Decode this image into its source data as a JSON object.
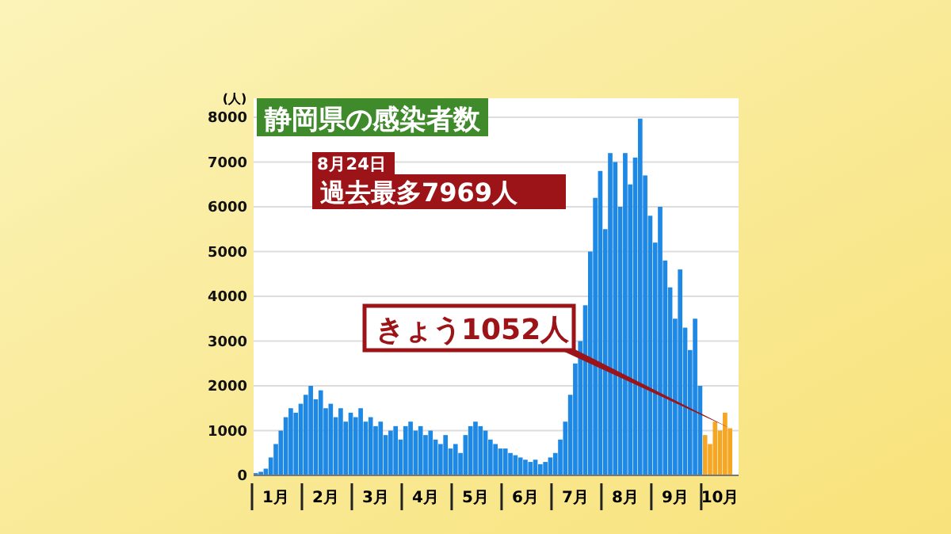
{
  "chart_data": {
    "type": "bar",
    "title": "静岡県の感染者数",
    "ylabel": "(人)",
    "categories": [
      null,
      null,
      null,
      null,
      "1月",
      null,
      null,
      null,
      null,
      null,
      null,
      null,
      null,
      null,
      "2月",
      null,
      null,
      null,
      null,
      null,
      null,
      null,
      null,
      null,
      "3月",
      null,
      null,
      null,
      null,
      null,
      null,
      null,
      null,
      null,
      "4月",
      null,
      null,
      null,
      null,
      null,
      null,
      null,
      null,
      null,
      "5月",
      null,
      null,
      null,
      null,
      null,
      null,
      null,
      null,
      null,
      "6月",
      null,
      null,
      null,
      null,
      null,
      null,
      null,
      null,
      null,
      "7月",
      null,
      null,
      null,
      null,
      null,
      null,
      null,
      null,
      null,
      "8月",
      null,
      null,
      null,
      null,
      null,
      null,
      null,
      null,
      null,
      "9月",
      null,
      null,
      null,
      null,
      null,
      null,
      null,
      null,
      "10月",
      null,
      null
    ],
    "values": [
      50,
      80,
      150,
      400,
      700,
      1000,
      1300,
      1500,
      1400,
      1600,
      1800,
      2000,
      1700,
      1900,
      1500,
      1600,
      1300,
      1500,
      1200,
      1400,
      1300,
      1500,
      1200,
      1300,
      1100,
      1200,
      900,
      1000,
      1100,
      800,
      1100,
      1200,
      1000,
      1100,
      900,
      1000,
      800,
      700,
      900,
      600,
      700,
      500,
      900,
      1100,
      1200,
      1100,
      1000,
      800,
      700,
      600,
      600,
      500,
      450,
      400,
      350,
      300,
      350,
      250,
      300,
      400,
      500,
      800,
      1200,
      1800,
      2500,
      3000,
      3800,
      5000,
      6200,
      6800,
      5500,
      7200,
      7000,
      6000,
      7200,
      6500,
      7100,
      7969,
      6700,
      5800,
      5200,
      6000,
      4800,
      4200,
      3500,
      4600,
      3300,
      2800,
      3500,
      2000,
      900,
      700,
      1200,
      1000,
      1400,
      1052
    ],
    "colors": [
      "#1e88e5",
      "#1e88e5",
      "#1e88e5",
      "#1e88e5",
      "#1e88e5",
      "#1e88e5",
      "#1e88e5",
      "#1e88e5",
      "#1e88e5",
      "#1e88e5",
      "#1e88e5",
      "#1e88e5",
      "#1e88e5",
      "#1e88e5",
      "#1e88e5",
      "#1e88e5",
      "#1e88e5",
      "#1e88e5",
      "#1e88e5",
      "#1e88e5",
      "#1e88e5",
      "#1e88e5",
      "#1e88e5",
      "#1e88e5",
      "#1e88e5",
      "#1e88e5",
      "#1e88e5",
      "#1e88e5",
      "#1e88e5",
      "#1e88e5",
      "#1e88e5",
      "#1e88e5",
      "#1e88e5",
      "#1e88e5",
      "#1e88e5",
      "#1e88e5",
      "#1e88e5",
      "#1e88e5",
      "#1e88e5",
      "#1e88e5",
      "#1e88e5",
      "#1e88e5",
      "#1e88e5",
      "#1e88e5",
      "#1e88e5",
      "#1e88e5",
      "#1e88e5",
      "#1e88e5",
      "#1e88e5",
      "#1e88e5",
      "#1e88e5",
      "#1e88e5",
      "#1e88e5",
      "#1e88e5",
      "#1e88e5",
      "#1e88e5",
      "#1e88e5",
      "#1e88e5",
      "#1e88e5",
      "#1e88e5",
      "#1e88e5",
      "#1e88e5",
      "#1e88e5",
      "#1e88e5",
      "#1e88e5",
      "#1e88e5",
      "#1e88e5",
      "#1e88e5",
      "#1e88e5",
      "#1e88e5",
      "#1e88e5",
      "#1e88e5",
      "#1e88e5",
      "#1e88e5",
      "#1e88e5",
      "#1e88e5",
      "#1e88e5",
      "#1e88e5",
      "#1e88e5",
      "#1e88e5",
      "#1e88e5",
      "#1e88e5",
      "#1e88e5",
      "#1e88e5",
      "#1e88e5",
      "#1e88e5",
      "#1e88e5",
      "#1e88e5",
      "#1e88e5",
      "#1e88e5",
      "#f5a623",
      "#f5a623",
      "#f5a623",
      "#f5a623",
      "#f5a623",
      "#f5a623"
    ],
    "ylim": [
      0,
      8000
    ],
    "yticks": [
      0,
      1000,
      2000,
      3000,
      4000,
      5000,
      6000,
      7000,
      8000
    ],
    "grid": "y",
    "annotations": [
      "8月24日",
      "過去最多7969人",
      "きょう1052人"
    ]
  }
}
